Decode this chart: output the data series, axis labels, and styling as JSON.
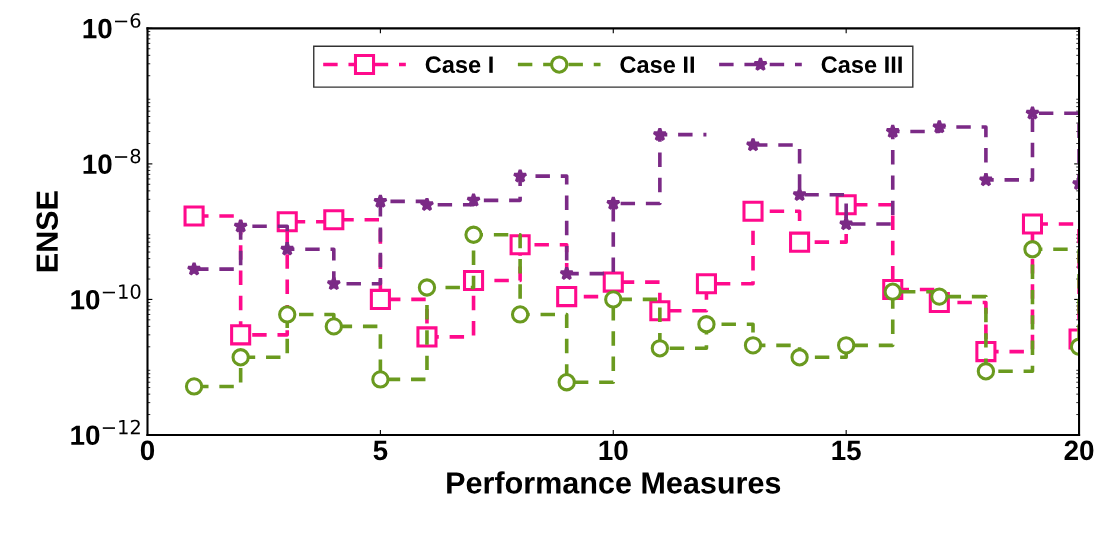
{
  "chart_data": {
    "type": "step",
    "xlabel": "Performance Measures",
    "ylabel": "ENSE",
    "x": [
      1,
      2,
      3,
      4,
      5,
      6,
      7,
      8,
      9,
      10,
      11,
      12,
      13,
      14,
      15,
      16,
      17,
      18,
      19,
      20
    ],
    "xlim": [
      0,
      20
    ],
    "xticks": [
      0,
      5,
      10,
      15,
      20
    ],
    "log": "y",
    "ylim": [
      1e-12,
      1e-06
    ],
    "yticks": [
      {
        "value": 1e-12,
        "label": "10$^{−12}$"
      },
      {
        "value": 1e-10,
        "label": "10$^{−10}$"
      },
      {
        "value": 1e-08,
        "label": "10$^{−8}$"
      },
      {
        "value": 1e-06,
        "label": "10$^{−6}$"
      }
    ],
    "grid": false,
    "legend": "top",
    "line_style": "dashed",
    "series": [
      {
        "name": "Case I",
        "color": "#ff0a8c",
        "marker": "square",
        "values": [
          1.7e-09,
          3e-11,
          1.4e-09,
          1.5e-09,
          1e-10,
          2.8e-11,
          1.9e-10,
          6.4e-10,
          1.1e-10,
          1.8e-10,
          6.8e-11,
          1.7e-10,
          2e-09,
          7e-10,
          2.5e-09,
          1.4e-10,
          9e-11,
          1.7e-11,
          1.3e-09,
          2.6e-11
        ]
      },
      {
        "name": "Case II",
        "color": "#6a9a1f",
        "marker": "circle",
        "values": [
          5.2e-12,
          1.4e-11,
          6e-11,
          4e-11,
          6.6e-12,
          1.5e-10,
          9e-10,
          6e-11,
          6e-12,
          1e-10,
          1.9e-11,
          4.3e-11,
          2.1e-11,
          1.4e-11,
          2.1e-11,
          1.3e-10,
          1.1e-10,
          8.7e-12,
          5.5e-10,
          2e-11
        ]
      },
      {
        "name": "Case III",
        "color": "#7b2a86",
        "marker": "star",
        "values": [
          2.8e-10,
          1.2e-09,
          5.5e-10,
          1.7e-10,
          2.8e-09,
          2.5e-09,
          2.9e-09,
          6.6e-09,
          2.4e-10,
          2.6e-09,
          2.7e-08,
          null,
          1.9e-08,
          3.5e-09,
          1.3e-09,
          3e-08,
          3.5e-08,
          5.8e-09,
          5.6e-08,
          5.1e-09
        ]
      }
    ]
  }
}
